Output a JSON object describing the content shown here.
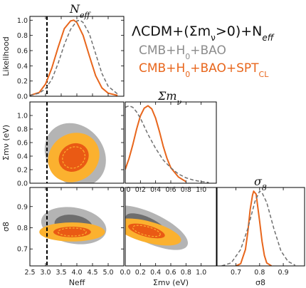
{
  "legend": {
    "title": "ΛCDM+(Σm<sub>ν</sub>>0)+N<sub>eff</sub>",
    "title_text": "ΛCDM+(Σmν>0)+Neff",
    "entries": [
      {
        "label": "CMB+H0+BAO",
        "color": "#8c8c8c",
        "style": "dashed"
      },
      {
        "label": "CMB+H0+BAO+SPTCL",
        "color": "#e8661c",
        "style": "solid"
      }
    ]
  },
  "colors": {
    "gray_outer": "#b4b4b4",
    "gray_inner": "#6e6e6e",
    "orange_outer": "#fbb12f",
    "orange_inner": "#ea5a14",
    "orange_line": "#e8661c",
    "gray_line": "#707070"
  },
  "chart_data": [
    {
      "id": "neff-1d",
      "type": "line",
      "title": "N_eff",
      "ylabel": "Likelihood",
      "xlim": [
        2.5,
        5.5
      ],
      "ylim": [
        0,
        1.05
      ],
      "xticks": [
        "2.5",
        "3.0",
        "3.5",
        "4.0",
        "4.5",
        "5.0"
      ],
      "yticks": [
        "0.0",
        "0.2",
        "0.4",
        "0.6",
        "0.8",
        "1.0"
      ],
      "reference_line_x": 3.046,
      "series": [
        {
          "x": [
            2.5,
            2.8,
            3.0,
            3.2,
            3.4,
            3.6,
            3.8,
            3.9,
            4.0,
            4.2,
            4.4,
            4.6,
            4.8,
            5.0,
            5.3
          ],
          "y": [
            0.01,
            0.05,
            0.16,
            0.37,
            0.64,
            0.89,
            0.99,
            1.0,
            0.97,
            0.8,
            0.53,
            0.27,
            0.11,
            0.04,
            0.01
          ],
          "style": "solid"
        },
        {
          "x": [
            2.5,
            2.8,
            3.0,
            3.2,
            3.4,
            3.6,
            3.8,
            4.0,
            4.1,
            4.2,
            4.4,
            4.6,
            4.8,
            5.0,
            5.3
          ],
          "y": [
            0.01,
            0.04,
            0.1,
            0.22,
            0.43,
            0.68,
            0.88,
            0.99,
            1.0,
            0.97,
            0.82,
            0.56,
            0.3,
            0.13,
            0.03
          ],
          "style": "dashed"
        }
      ]
    },
    {
      "id": "mnu-1d",
      "type": "line",
      "title": "Σm_ν",
      "xlim": [
        0,
        1.2
      ],
      "ylim": [
        0,
        1.05
      ],
      "xticks": [
        "0.0",
        "0.2",
        "0.4",
        "0.6",
        "0.8",
        "1.0"
      ],
      "series": [
        {
          "x": [
            0.0,
            0.05,
            0.1,
            0.15,
            0.2,
            0.25,
            0.3,
            0.35,
            0.4,
            0.45,
            0.5,
            0.55,
            0.6,
            0.7,
            0.8
          ],
          "y": [
            0.18,
            0.32,
            0.5,
            0.7,
            0.87,
            0.97,
            1.0,
            0.96,
            0.84,
            0.67,
            0.48,
            0.32,
            0.2,
            0.08,
            0.02
          ],
          "style": "solid"
        },
        {
          "x": [
            0.0,
            0.05,
            0.1,
            0.15,
            0.2,
            0.3,
            0.4,
            0.5,
            0.6,
            0.7,
            0.8,
            0.9,
            1.0,
            1.1
          ],
          "y": [
            0.98,
            1.0,
            0.98,
            0.92,
            0.84,
            0.63,
            0.45,
            0.3,
            0.2,
            0.12,
            0.07,
            0.04,
            0.02,
            0.01
          ],
          "style": "dashed"
        }
      ]
    },
    {
      "id": "s8-1d",
      "type": "line",
      "title": "σ_8",
      "xlabel": "σ8",
      "xlim": [
        0.62,
        0.99
      ],
      "ylim": [
        0,
        1.05
      ],
      "xticks": [
        "0.7",
        "0.8",
        "0.9"
      ],
      "series": [
        {
          "x": [
            0.7,
            0.72,
            0.74,
            0.75,
            0.76,
            0.77,
            0.775,
            0.785,
            0.8,
            0.81,
            0.82,
            0.83,
            0.85
          ],
          "y": [
            0.0,
            0.03,
            0.22,
            0.45,
            0.75,
            0.95,
            1.0,
            0.96,
            0.6,
            0.33,
            0.14,
            0.04,
            0.0
          ],
          "style": "solid"
        },
        {
          "x": [
            0.64,
            0.68,
            0.72,
            0.75,
            0.78,
            0.8,
            0.81,
            0.83,
            0.86,
            0.89,
            0.92,
            0.95
          ],
          "y": [
            0.0,
            0.04,
            0.22,
            0.5,
            0.86,
            1.0,
            0.98,
            0.85,
            0.5,
            0.2,
            0.06,
            0.01
          ],
          "style": "dashed"
        }
      ]
    },
    {
      "id": "mnu-vs-neff",
      "type": "contour",
      "xlim": [
        2.5,
        5.5
      ],
      "ylim": [
        0,
        1.2
      ],
      "ylabel": "Σmν (eV)",
      "yticks": [
        "0.0",
        "0.2",
        "0.4",
        "0.6",
        "0.8",
        "1.0"
      ],
      "reference_line_x": 3.046,
      "regions": [
        {
          "level": "gray-95",
          "cx": 3.95,
          "cy": 0.42,
          "rx": 0.9,
          "ry": 0.5,
          "angle": 40
        },
        {
          "level": "gray-68",
          "cx": 3.95,
          "cy": 0.42,
          "rx": 0.55,
          "ry": 0.25,
          "angle": 40
        },
        {
          "level": "orange-95",
          "cx": 3.9,
          "cy": 0.38,
          "rx": 0.85,
          "ry": 0.35,
          "angle": 35
        },
        {
          "level": "orange-68",
          "cx": 3.9,
          "cy": 0.38,
          "rx": 0.5,
          "ry": 0.2,
          "angle": 35
        }
      ]
    },
    {
      "id": "s8-vs-neff",
      "type": "contour",
      "xlabel": "N_eff",
      "xlim": [
        2.5,
        5.5
      ],
      "ylim": [
        0.62,
        0.99
      ],
      "ylabel": "σ8",
      "xticks": [
        "2.5",
        "3.0",
        "3.5",
        "4.0",
        "4.5",
        "5.0"
      ],
      "yticks": [
        "0.7",
        "0.8",
        "0.9"
      ],
      "reference_line_x": 3.046,
      "regions": [
        {
          "level": "gray-95",
          "cx": 3.9,
          "cy": 0.81,
          "rx": 1.05,
          "ry": 0.085,
          "angle": -10
        },
        {
          "level": "gray-68",
          "cx": 3.9,
          "cy": 0.81,
          "rx": 0.62,
          "ry": 0.05,
          "angle": -10
        },
        {
          "level": "orange-95",
          "cx": 3.85,
          "cy": 0.78,
          "rx": 1.05,
          "ry": 0.045,
          "angle": 0
        },
        {
          "level": "orange-68",
          "cx": 3.85,
          "cy": 0.78,
          "rx": 0.6,
          "ry": 0.025,
          "angle": 0
        }
      ]
    },
    {
      "id": "s8-vs-mnu",
      "type": "contour",
      "xlabel": "Σmν (eV)",
      "xlim": [
        0,
        1.2
      ],
      "ylim": [
        0.62,
        0.99
      ],
      "xticks": [
        "0.0",
        "0.2",
        "0.4",
        "0.6",
        "0.8",
        "1.0"
      ],
      "regions": [
        {
          "level": "gray-95",
          "cx": 0.32,
          "cy": 0.8,
          "rx": 0.55,
          "ry": 0.07,
          "angle": -25
        },
        {
          "level": "gray-68",
          "cx": 0.28,
          "cy": 0.81,
          "rx": 0.3,
          "ry": 0.04,
          "angle": -25
        },
        {
          "level": "orange-95",
          "cx": 0.3,
          "cy": 0.78,
          "rx": 0.45,
          "ry": 0.05,
          "angle": -15
        },
        {
          "level": "orange-68",
          "cx": 0.28,
          "cy": 0.785,
          "rx": 0.25,
          "ry": 0.027,
          "angle": -15
        }
      ]
    }
  ]
}
